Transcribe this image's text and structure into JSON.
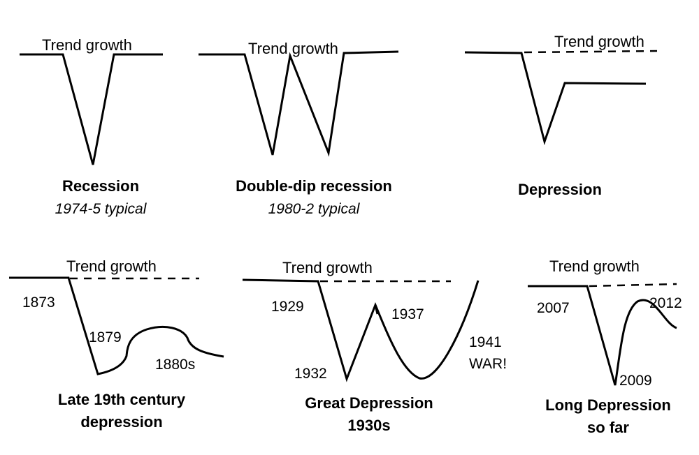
{
  "panels": {
    "recession": {
      "trend_label": "Trend growth",
      "title": "Recession",
      "subtitle": "1974-5 typical"
    },
    "double_dip": {
      "trend_label": "Trend growth",
      "title": "Double-dip recession",
      "subtitle": "1980-2 typical"
    },
    "depression": {
      "trend_label": "Trend growth",
      "title": "Depression"
    },
    "late19": {
      "trend_label": "Trend growth",
      "title_line1": "Late 19th century",
      "title_line2": "depression",
      "years": [
        "1873",
        "1879",
        "1880s"
      ]
    },
    "great": {
      "trend_label": "Trend growth",
      "title_line1": "Great Depression",
      "title_line2": "1930s",
      "years": [
        "1929",
        "1937",
        "1932",
        "1941",
        "WAR!"
      ]
    },
    "long": {
      "trend_label": "Trend growth",
      "title_line1": "Long Depression",
      "title_line2": "so far",
      "years": [
        "2007",
        "2012",
        "2009"
      ]
    }
  }
}
